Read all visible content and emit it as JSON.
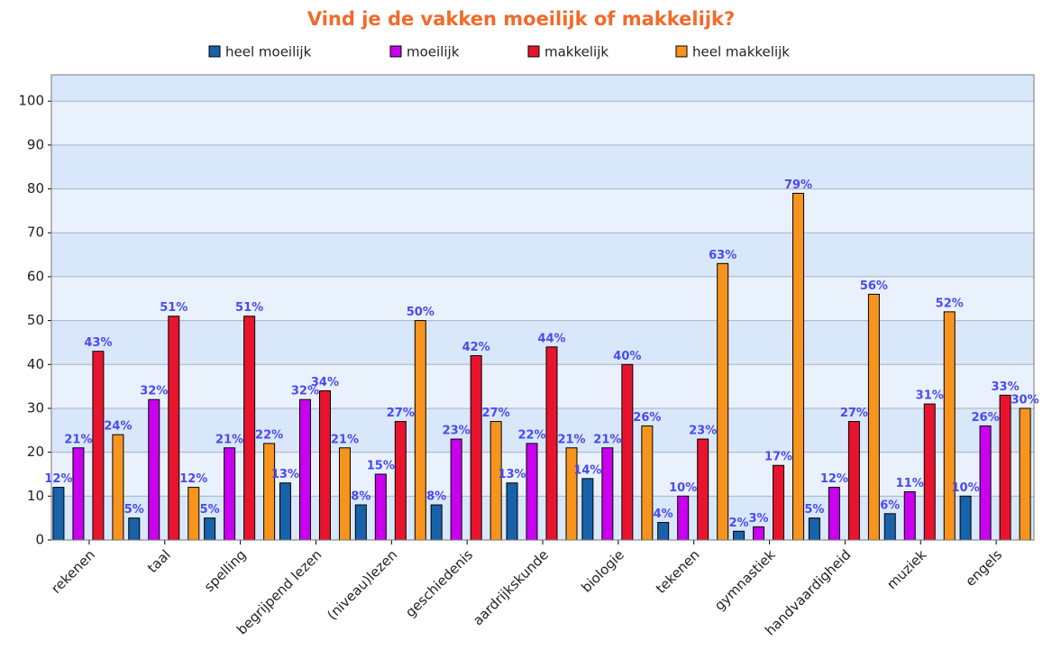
{
  "chart_data": {
    "type": "bar",
    "title": "Vind je de vakken moeilijk of makkelijk?",
    "categories": [
      "rekenen",
      "taal",
      "spelling",
      "begrijpend lezen",
      "(niveau)lezen",
      "geschiedenis",
      "aardrijkskunde",
      "biologie",
      "tekenen",
      "gymnastiek",
      "handvaardigheid",
      "muziek",
      "engels"
    ],
    "series": [
      {
        "name": "heel moeilijk",
        "color": "#1862aa",
        "values": [
          12,
          5,
          5,
          13,
          8,
          8,
          13,
          14,
          4,
          2,
          5,
          6,
          10
        ],
        "value_labels": [
          "12%",
          "5%",
          "5%",
          "13%",
          "8%",
          "8%",
          "13%",
          "14%",
          "4%",
          "2%",
          "5%",
          "6%",
          "10%"
        ]
      },
      {
        "name": "moeilijk",
        "color": "#c800ee",
        "values": [
          21,
          32,
          21,
          32,
          15,
          23,
          22,
          21,
          10,
          3,
          12,
          11,
          26
        ],
        "value_labels": [
          "21%",
          "32%",
          "21%",
          "32%",
          "15%",
          "23%",
          "22%",
          "21%",
          "10%",
          "3%",
          "12%",
          "11%",
          "26%"
        ]
      },
      {
        "name": "makkelijk",
        "color": "#e8142e",
        "values": [
          43,
          51,
          51,
          34,
          27,
          42,
          44,
          40,
          23,
          17,
          27,
          31,
          33
        ],
        "value_labels": [
          "43%",
          "51%",
          "51%",
          "34%",
          "27%",
          "42%",
          "44%",
          "40%",
          "23%",
          "17%",
          "27%",
          "31%",
          "33%"
        ]
      },
      {
        "name": "heel makkelijk",
        "color": "#f7941e",
        "values": [
          24,
          12,
          22,
          21,
          50,
          27,
          21,
          26,
          63,
          79,
          56,
          52,
          30
        ],
        "value_labels": [
          "24%",
          "12%",
          "22%",
          "21%",
          "50%",
          "27%",
          "21%",
          "26%",
          "63%",
          "79%",
          "56%",
          "52%",
          "30%"
        ]
      }
    ],
    "ylim": [
      0,
      106
    ],
    "yticks": [
      0,
      10,
      20,
      30,
      40,
      50,
      60,
      70,
      80,
      90,
      100
    ],
    "grid": true,
    "legend": "top"
  }
}
